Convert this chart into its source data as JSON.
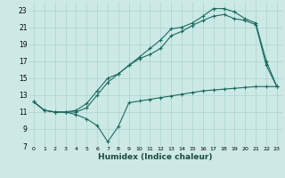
{
  "xlabel": "Humidex (Indice chaleur)",
  "background_color": "#cce9e5",
  "grid_color": "#aad4cf",
  "line_color": "#1a6b60",
  "xlim": [
    -0.5,
    23.5
  ],
  "ylim": [
    7,
    24
  ],
  "yticks": [
    7,
    9,
    11,
    13,
    15,
    17,
    19,
    21,
    23
  ],
  "xticks": [
    0,
    1,
    2,
    3,
    4,
    5,
    6,
    7,
    8,
    9,
    10,
    11,
    12,
    13,
    14,
    15,
    16,
    17,
    18,
    19,
    20,
    21,
    22,
    23
  ],
  "line1_x": [
    0,
    1,
    2,
    3,
    4,
    5,
    6,
    7,
    8,
    9,
    10,
    11,
    12,
    13,
    14,
    15,
    16,
    17,
    18,
    19,
    20,
    21,
    22,
    23
  ],
  "line1_y": [
    12.2,
    11.2,
    11.0,
    11.0,
    10.7,
    10.2,
    9.4,
    7.5,
    9.3,
    12.1,
    12.3,
    12.5,
    12.7,
    12.9,
    13.1,
    13.3,
    13.5,
    13.6,
    13.7,
    13.8,
    13.9,
    14.0,
    14.0,
    14.0
  ],
  "line2_x": [
    0,
    1,
    2,
    3,
    4,
    5,
    6,
    7,
    8,
    9,
    10,
    11,
    12,
    13,
    14,
    15,
    16,
    17,
    18,
    19,
    20,
    21,
    22,
    23
  ],
  "line2_y": [
    12.2,
    11.2,
    11.0,
    11.0,
    11.0,
    11.5,
    13.0,
    14.5,
    15.5,
    16.5,
    17.3,
    17.8,
    18.5,
    20.0,
    20.5,
    21.2,
    21.8,
    22.3,
    22.5,
    22.0,
    21.8,
    21.3,
    16.5,
    14.0
  ],
  "line3_x": [
    0,
    1,
    2,
    3,
    4,
    5,
    6,
    7,
    8,
    9,
    10,
    11,
    12,
    13,
    14,
    15,
    16,
    17,
    18,
    19,
    20,
    21,
    22,
    23
  ],
  "line3_y": [
    12.2,
    11.2,
    11.0,
    11.0,
    11.2,
    12.0,
    13.5,
    15.0,
    15.5,
    16.5,
    17.5,
    18.5,
    19.5,
    20.8,
    21.0,
    21.5,
    22.3,
    23.2,
    23.2,
    22.8,
    22.0,
    21.5,
    17.0,
    14.0
  ]
}
